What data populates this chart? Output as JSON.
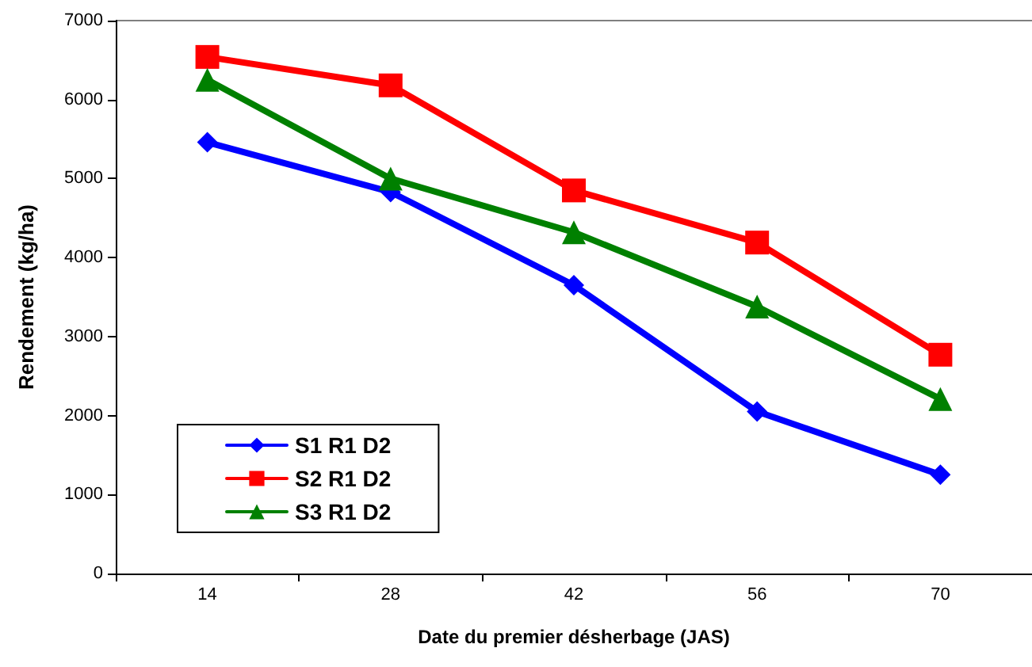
{
  "chart_data": {
    "type": "line",
    "xlabel": "Date du premier désherbage (JAS)",
    "ylabel": "Rendement (kg/ha)",
    "categories": [
      "14",
      "28",
      "42",
      "56",
      "70"
    ],
    "series": [
      {
        "name": "S1 R1 D2",
        "color": "#0000ff",
        "marker": "diamond",
        "values": [
          5460,
          4830,
          3650,
          2050,
          1250
        ]
      },
      {
        "name": "S2 R1 D2",
        "color": "#ff0000",
        "marker": "square",
        "values": [
          6540,
          6180,
          4850,
          4190,
          2770
        ]
      },
      {
        "name": "S3 R1 D2",
        "color": "#008000",
        "marker": "triangle",
        "values": [
          6250,
          5000,
          4320,
          3380,
          2210
        ]
      }
    ],
    "ylim": [
      0,
      7000
    ],
    "yticks": [
      0,
      1000,
      2000,
      3000,
      4000,
      5000,
      6000,
      7000
    ],
    "grid": false,
    "legend": "bottom left",
    "line_style": "solid"
  }
}
